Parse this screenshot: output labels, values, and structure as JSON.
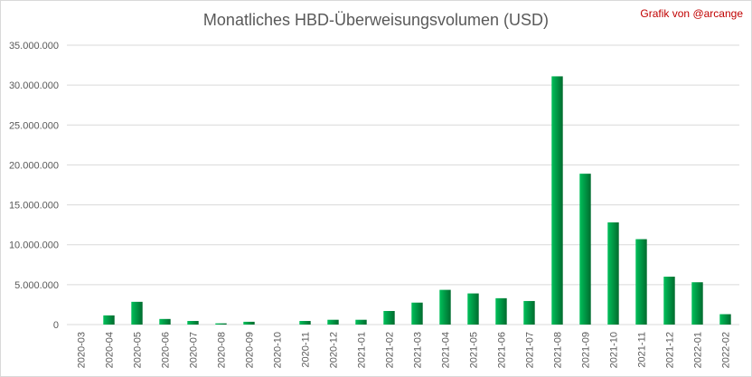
{
  "chart_data": {
    "type": "bar",
    "title": "Monatliches HBD-Überweisungsvolumen (USD)",
    "credit": "Grafik von @arcange",
    "xlabel": "",
    "ylabel": "",
    "ylim": [
      0,
      35000000
    ],
    "yticks": [
      0,
      5000000,
      10000000,
      15000000,
      20000000,
      25000000,
      30000000,
      35000000
    ],
    "ytick_labels": [
      "0",
      "5.000.000",
      "10.000.000",
      "15.000.000",
      "20.000.000",
      "25.000.000",
      "30.000.000",
      "35.000.000"
    ],
    "grid": true,
    "legend": "none",
    "bar_color_light": "#00c05a",
    "bar_color_dark": "#006b2e",
    "categories": [
      "2020-03",
      "2020-04",
      "2020-05",
      "2020-06",
      "2020-07",
      "2020-08",
      "2020-09",
      "2020-10",
      "2020-11",
      "2020-12",
      "2021-01",
      "2021-02",
      "2021-03",
      "2021-04",
      "2021-05",
      "2021-06",
      "2021-07",
      "2021-08",
      "2021-09",
      "2021-10",
      "2021-11",
      "2021-12",
      "2022-01",
      "2022-02"
    ],
    "values": [
      0,
      1150000,
      2850000,
      700000,
      450000,
      150000,
      350000,
      0,
      450000,
      600000,
      600000,
      1700000,
      2750000,
      4350000,
      3900000,
      3300000,
      2950000,
      31100000,
      18900000,
      12800000,
      10700000,
      6000000,
      5300000,
      1300000
    ]
  }
}
